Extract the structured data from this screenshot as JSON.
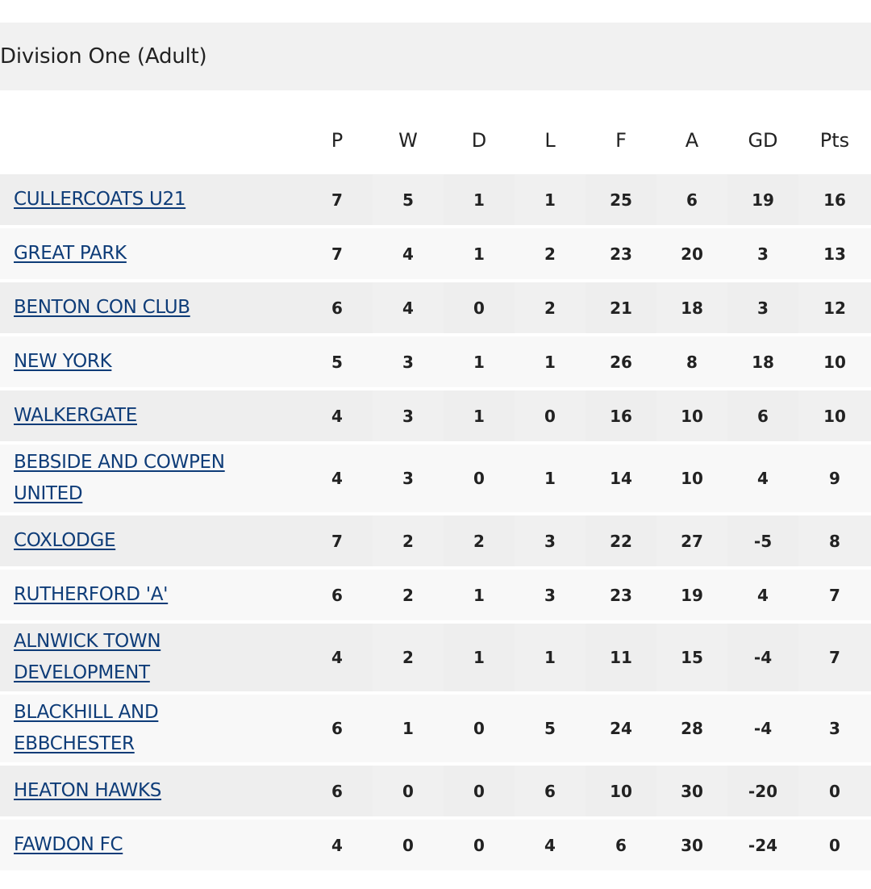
{
  "division": {
    "title": "Division One (Adult)"
  },
  "table": {
    "columns": [
      "P",
      "W",
      "D",
      "L",
      "F",
      "A",
      "GD",
      "Pts"
    ],
    "rows": [
      {
        "team": "CULLERCOATS U21",
        "P": "7",
        "W": "5",
        "D": "1",
        "L": "1",
        "F": "25",
        "A": "6",
        "GD": "19",
        "Pts": "16"
      },
      {
        "team": "GREAT PARK",
        "P": "7",
        "W": "4",
        "D": "1",
        "L": "2",
        "F": "23",
        "A": "20",
        "GD": "3",
        "Pts": "13"
      },
      {
        "team": "BENTON CON CLUB",
        "P": "6",
        "W": "4",
        "D": "0",
        "L": "2",
        "F": "21",
        "A": "18",
        "GD": "3",
        "Pts": "12"
      },
      {
        "team": "NEW YORK",
        "P": "5",
        "W": "3",
        "D": "1",
        "L": "1",
        "F": "26",
        "A": "8",
        "GD": "18",
        "Pts": "10"
      },
      {
        "team": "WALKERGATE",
        "P": "4",
        "W": "3",
        "D": "1",
        "L": "0",
        "F": "16",
        "A": "10",
        "GD": "6",
        "Pts": "10"
      },
      {
        "team": "BEBSIDE AND COWPEN UNITED",
        "P": "4",
        "W": "3",
        "D": "0",
        "L": "1",
        "F": "14",
        "A": "10",
        "GD": "4",
        "Pts": "9"
      },
      {
        "team": "COXLODGE",
        "P": "7",
        "W": "2",
        "D": "2",
        "L": "3",
        "F": "22",
        "A": "27",
        "GD": "-5",
        "Pts": "8"
      },
      {
        "team": "RUTHERFORD 'A'",
        "P": "6",
        "W": "2",
        "D": "1",
        "L": "3",
        "F": "23",
        "A": "19",
        "GD": "4",
        "Pts": "7"
      },
      {
        "team": "ALNWICK TOWN DEVELOPMENT",
        "P": "4",
        "W": "2",
        "D": "1",
        "L": "1",
        "F": "11",
        "A": "15",
        "GD": "-4",
        "Pts": "7"
      },
      {
        "team": "BLACKHILL AND EBBCHESTER",
        "P": "6",
        "W": "1",
        "D": "0",
        "L": "5",
        "F": "24",
        "A": "28",
        "GD": "-4",
        "Pts": "3"
      },
      {
        "team": "HEATON HAWKS",
        "P": "6",
        "W": "0",
        "D": "0",
        "L": "6",
        "F": "10",
        "A": "30",
        "GD": "-20",
        "Pts": "0"
      },
      {
        "team": "FAWDON FC",
        "P": "4",
        "W": "0",
        "D": "0",
        "L": "4",
        "F": "6",
        "A": "30",
        "GD": "-24",
        "Pts": "0"
      }
    ]
  },
  "colors": {
    "link": "#0e3c78",
    "header_band": "#f1f1f1",
    "row_dark": "#eeeeee",
    "row_light": "#f8f8f8",
    "text": "#222222"
  }
}
